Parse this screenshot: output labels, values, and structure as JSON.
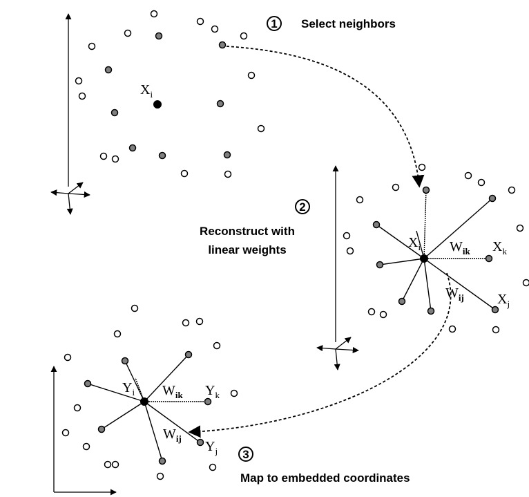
{
  "steps": [
    {
      "number": "1",
      "label": "Select neighbors"
    },
    {
      "number": "2",
      "label_line1": "Reconstruct with",
      "label_line2": "linear weights"
    },
    {
      "number": "3",
      "label": "Map to embedded coordinates"
    }
  ],
  "panel1": {
    "center_symbol": "X",
    "center_sub": "i"
  },
  "panel2": {
    "center_symbol": "X",
    "center_sub": "i",
    "weight_ik_symbol": "W",
    "weight_ik_sub": "ik",
    "neighbor_k_symbol": "X",
    "neighbor_k_sub": "k",
    "weight_ij_symbol": "W",
    "weight_ij_sub": "ij",
    "neighbor_j_symbol": "X",
    "neighbor_j_sub": "j"
  },
  "panel3": {
    "center_symbol": "Y",
    "center_sub": "i",
    "weight_ik_symbol": "W",
    "weight_ik_sub": "ik",
    "neighbor_k_symbol": "Y",
    "neighbor_k_sub": "k",
    "weight_ij_symbol": "W",
    "weight_ij_sub": "ij",
    "neighbor_j_symbol": "Y",
    "neighbor_j_sub": "j"
  },
  "colors": {
    "ink": "#000000",
    "neighbor_fill": "#808080",
    "open_fill": "#ffffff",
    "center_fill": "#000000"
  }
}
